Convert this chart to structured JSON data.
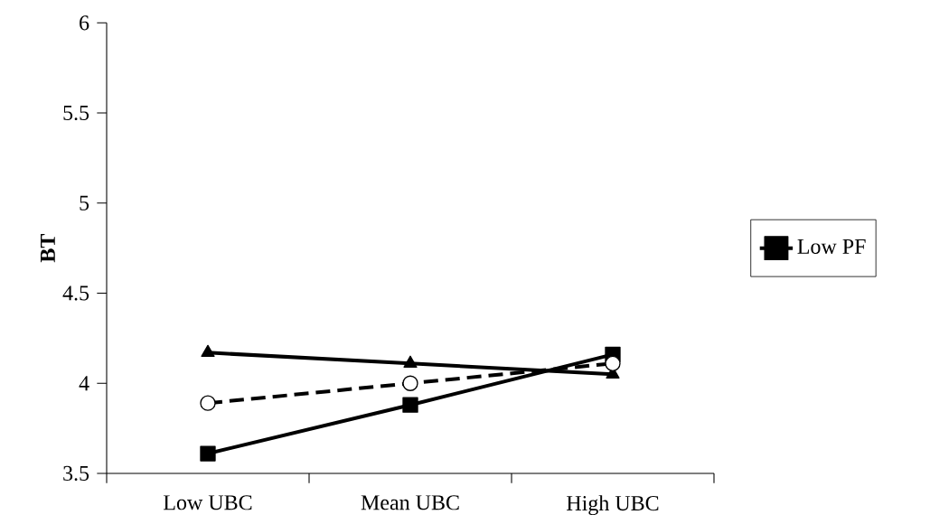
{
  "chart_data": {
    "type": "line",
    "ylabel": "BT",
    "categories": [
      "Low UBC",
      "Mean UBC",
      "High UBC"
    ],
    "series": [
      {
        "name": "Low PF",
        "color": "#000000",
        "marker": "square",
        "line_style": "solid",
        "values": [
          3.61,
          3.88,
          4.16
        ]
      },
      {
        "color": "#000000",
        "marker": "triangle",
        "line_style": "solid",
        "values": [
          4.17,
          4.11,
          4.05
        ]
      },
      {
        "color": "#000000",
        "marker": "circle",
        "line_style": "dashed",
        "values": [
          3.89,
          4.0,
          4.11
        ]
      }
    ],
    "ylim": [
      3.5,
      6
    ],
    "yticks": [
      3.5,
      4,
      4.5,
      5,
      5.5,
      6
    ],
    "grid": false,
    "legend": "right"
  }
}
